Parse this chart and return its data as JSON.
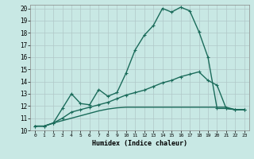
{
  "xlabel": "Humidex (Indice chaleur)",
  "xlim": [
    -0.5,
    23.5
  ],
  "ylim": [
    10,
    20.3
  ],
  "xticks": [
    0,
    1,
    2,
    3,
    4,
    5,
    6,
    7,
    8,
    9,
    10,
    11,
    12,
    13,
    14,
    15,
    16,
    17,
    18,
    19,
    20,
    21,
    22,
    23
  ],
  "yticks": [
    10,
    11,
    12,
    13,
    14,
    15,
    16,
    17,
    18,
    19,
    20
  ],
  "background_color": "#c8e8e4",
  "grid_color": "#b0c8c8",
  "line_color": "#1a6b5a",
  "line1_x": [
    0,
    1,
    2,
    3,
    4,
    5,
    6,
    7,
    8,
    9,
    10,
    11,
    12,
    13,
    14,
    15,
    16,
    17,
    18,
    19,
    20,
    21,
    22,
    23
  ],
  "line1_y": [
    10.35,
    10.35,
    10.6,
    11.8,
    13.0,
    12.2,
    12.1,
    13.35,
    12.8,
    13.1,
    14.7,
    16.6,
    17.8,
    18.6,
    20.0,
    19.7,
    20.1,
    19.8,
    18.1,
    16.0,
    11.8,
    11.8,
    11.7,
    11.7
  ],
  "line2_x": [
    0,
    1,
    2,
    3,
    4,
    5,
    6,
    7,
    8,
    9,
    10,
    11,
    12,
    13,
    14,
    15,
    16,
    17,
    18,
    19,
    20,
    21,
    22,
    23
  ],
  "line2_y": [
    10.35,
    10.35,
    10.6,
    11.0,
    11.5,
    11.7,
    11.9,
    12.1,
    12.3,
    12.6,
    12.9,
    13.1,
    13.3,
    13.6,
    13.9,
    14.1,
    14.4,
    14.6,
    14.8,
    14.1,
    13.7,
    11.8,
    11.7,
    11.7
  ],
  "line3_x": [
    0,
    1,
    2,
    3,
    4,
    5,
    6,
    7,
    8,
    9,
    10,
    11,
    12,
    13,
    14,
    15,
    16,
    17,
    18,
    19,
    20,
    21,
    22,
    23
  ],
  "line3_y": [
    10.35,
    10.35,
    10.6,
    10.8,
    11.0,
    11.2,
    11.4,
    11.6,
    11.75,
    11.85,
    11.9,
    11.9,
    11.9,
    11.9,
    11.9,
    11.9,
    11.9,
    11.9,
    11.9,
    11.9,
    11.9,
    11.9,
    11.7,
    11.7
  ],
  "marker_size": 2.5,
  "linewidth": 1.0
}
